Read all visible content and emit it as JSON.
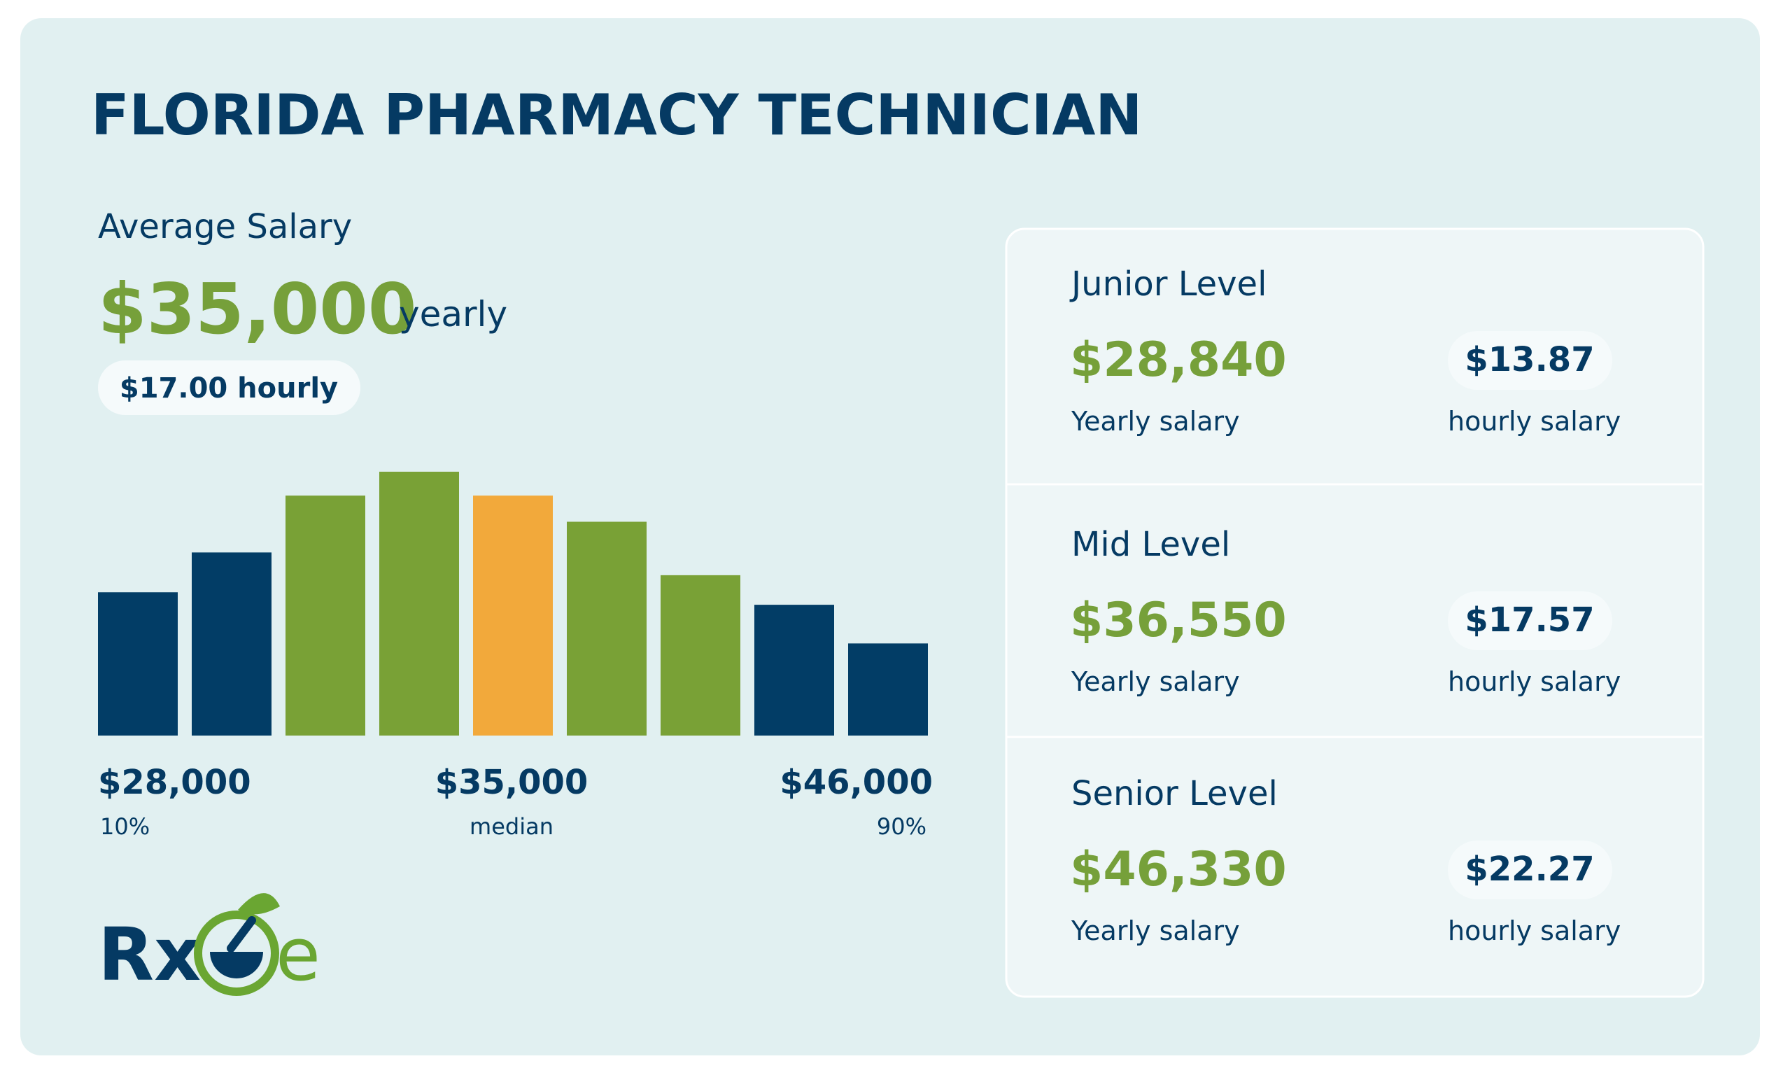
{
  "header": {
    "title": "FLORIDA PHARMACY TECHNICIAN"
  },
  "average": {
    "label": "Average Salary",
    "amount": "$35,000",
    "period": "yearly",
    "hourly": "$17.00 hourly"
  },
  "chart_data": {
    "type": "bar",
    "values": [
      126,
      161,
      211,
      232,
      211,
      188,
      141,
      115,
      81
    ],
    "colors": [
      "#023d66",
      "#023d66",
      "#79a136",
      "#79a136",
      "#f2a93b",
      "#79a136",
      "#79a136",
      "#023d66",
      "#023d66"
    ],
    "markers": [
      {
        "amount": "$28,000",
        "note": "10%"
      },
      {
        "amount": "$35,000",
        "note": "median"
      },
      {
        "amount": "$46,000",
        "note": "90%"
      }
    ]
  },
  "levels": [
    {
      "name": "Junior Level",
      "yearly": "$28,840",
      "yearly_label": "Yearly salary",
      "hourly": "$13.87",
      "hourly_label": "hourly salary"
    },
    {
      "name": "Mid Level",
      "yearly": "$36,550",
      "yearly_label": "Yearly salary",
      "hourly": "$17.57",
      "hourly_label": "hourly salary"
    },
    {
      "name": "Senior Level",
      "yearly": "$46,330",
      "yearly_label": "Yearly salary",
      "hourly": "$22.27",
      "hourly_label": "hourly salary"
    }
  ],
  "logo": {
    "left": "Rx",
    "right": "e"
  }
}
